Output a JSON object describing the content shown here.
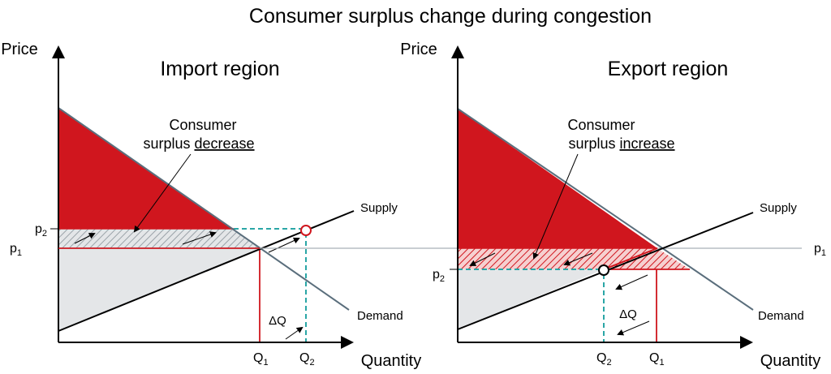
{
  "title": "Consumer surplus change during congestion",
  "axes": {
    "y_label": "Price",
    "x_label": "Quantity"
  },
  "left_panel": {
    "title": "Import region",
    "callout_line1": "Consumer",
    "callout_line2_prefix": "surplus ",
    "callout_line2_emph": "decrease",
    "supply_label": "Supply",
    "demand_label": "Demand",
    "p2_base": "p",
    "p2_sub": "2",
    "p1_base": "p",
    "p1_sub": "1",
    "q1_base": "Q",
    "q1_sub": "1",
    "q2_base": "Q",
    "q2_sub": "2",
    "delta_q": "ΔQ"
  },
  "right_panel": {
    "title": "Export region",
    "callout_line1": "Consumer",
    "callout_line2_prefix": "surplus ",
    "callout_line2_emph": "increase",
    "supply_label": "Supply",
    "demand_label": "Demand",
    "p1_base": "p",
    "p1_sub": "1",
    "p2_base": "p",
    "p2_sub": "2",
    "q1_base": "Q",
    "q1_sub": "1",
    "q2_base": "Q",
    "q2_sub": "2",
    "delta_q": "ΔQ"
  },
  "colors": {
    "surplus_red": "#d0161e",
    "gray_fill": "#e4e6e8",
    "demand_line": "#5a6e7c",
    "dashed_teal": "#2aa6a6",
    "p1_line": "#a9b1b6"
  }
}
